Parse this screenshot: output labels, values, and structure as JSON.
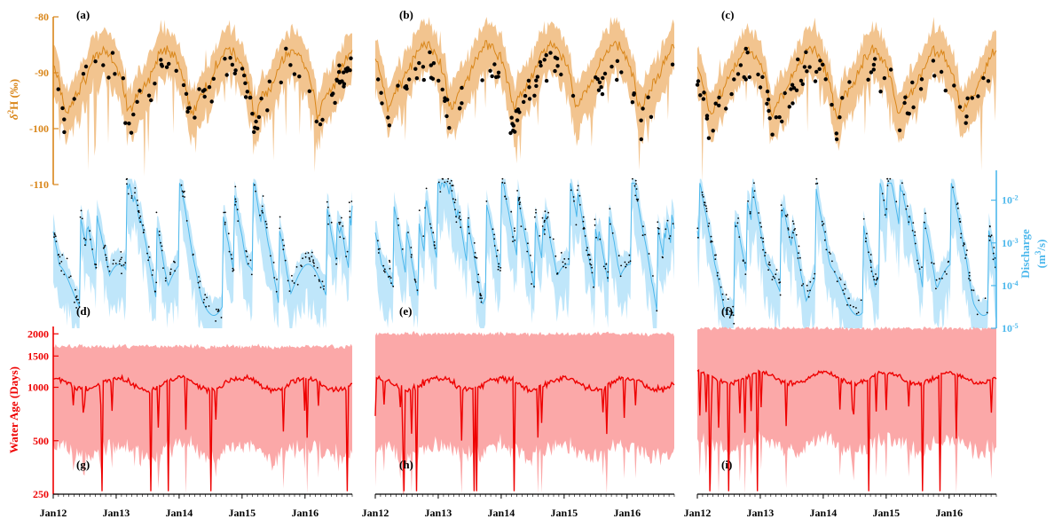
{
  "colors": {
    "isotope": "#d9861a",
    "isotope_band": "#f2c48f",
    "discharge": "#4db8ec",
    "discharge_band": "#bfe6fa",
    "age": "#ee0000",
    "age_band": "#fba8a8",
    "obs": "#000000"
  },
  "panel_labels": [
    "(a)",
    "(b)",
    "(c)",
    "(d)",
    "(e)",
    "(f)",
    "(g)",
    "(h)",
    "(i)"
  ],
  "x_ticks": [
    "Jan12",
    "Jan13",
    "Jan14",
    "Jan15",
    "Jan16"
  ],
  "chart_data": [
    {
      "type": "line",
      "panels": [
        "(a)",
        "(b)",
        "(c)"
      ],
      "ylabel_main": "δ",
      "ylabel_sup": "2",
      "ylabel_rest": "H (‰)",
      "ylim": [
        -110,
        -80
      ],
      "yticks": [
        "-80",
        "-90",
        "-100",
        "-110"
      ],
      "yvalues": [
        -80,
        -90,
        -100,
        -110
      ],
      "x_range": [
        "2012-01-01",
        "2016-10-01"
      ],
      "series": [
        {
          "kind": "simulated with uncertainty band"
        },
        {
          "kind": "observed samples (points)"
        }
      ]
    },
    {
      "type": "line",
      "panels": [
        "(d)",
        "(e)",
        "(f)"
      ],
      "ylabel_line1": "Discharge",
      "ylabel_line2_a": "(m",
      "ylabel_line2_sup": "3",
      "ylabel_line2_b": "/s)",
      "yscale": "log",
      "ylim": [
        1e-05,
        0.05
      ],
      "yticks": [
        {
          "base": "10",
          "exp": "-2",
          "value": 0.01
        },
        {
          "base": "10",
          "exp": "-3",
          "value": 0.001
        },
        {
          "base": "10",
          "exp": "-4",
          "value": 0.0001
        },
        {
          "base": "10",
          "exp": "-5",
          "value": 1e-05
        }
      ],
      "series": [
        {
          "kind": "simulated with uncertainty band"
        },
        {
          "kind": "observed (dots)"
        }
      ]
    },
    {
      "type": "line",
      "panels": [
        "(g)",
        "(h)",
        "(i)"
      ],
      "ylabel": "Water Age (Days)",
      "yscale": "log",
      "ylim": [
        250,
        2200
      ],
      "yticks": [
        "2000",
        "1500",
        "1000",
        "500",
        "250"
      ],
      "yvalues": [
        2000,
        1500,
        1000,
        500,
        250
      ],
      "series": [
        {
          "kind": "simulated median with uncertainty band"
        }
      ]
    }
  ]
}
